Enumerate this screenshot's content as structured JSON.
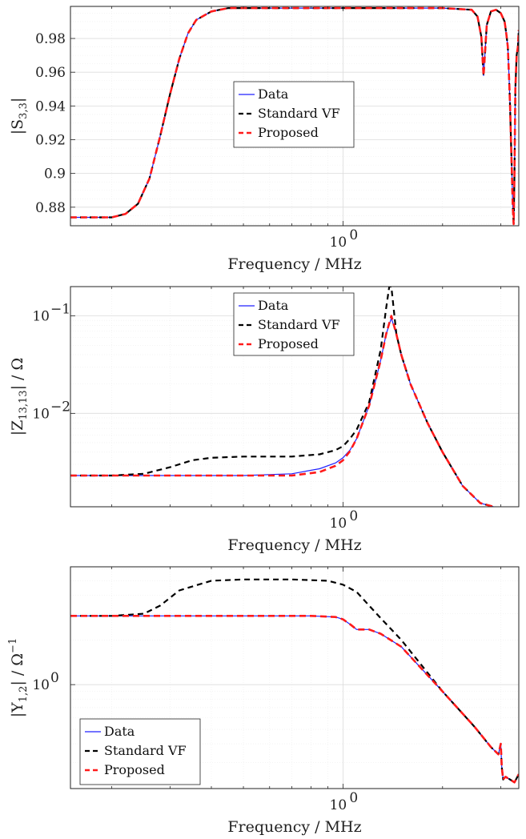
{
  "colors": {
    "data": "#2020ff",
    "standard_vf": "#000000",
    "proposed": "#ff1a1a"
  },
  "chart_data": [
    {
      "type": "line",
      "xlabel": "Frequency / MHz",
      "ylabel": "|S",
      "ylabel_sub": "3,3",
      "ylabel_tail": "|",
      "xscale": "log",
      "xlim": [
        0.15,
        3.4
      ],
      "ylim": [
        0.869,
        0.999
      ],
      "yscale": "linear",
      "yticks": [
        0.88,
        0.9,
        0.92,
        0.94,
        0.96,
        0.98
      ],
      "yticklabels": [
        "0.88",
        "0.9",
        "0.92",
        "0.94",
        "0.96",
        "0.98"
      ],
      "xticks": [
        1.0
      ],
      "xtick_base": "10",
      "xtick_exp": "0",
      "grid": true,
      "legend_position": "center",
      "legend": [
        "Data",
        "Standard VF",
        "Proposed"
      ],
      "series": [
        {
          "name": "Data",
          "x": [
            0.15,
            0.2,
            0.22,
            0.24,
            0.26,
            0.28,
            0.3,
            0.32,
            0.34,
            0.36,
            0.4,
            0.45,
            0.5,
            0.7,
            1.0,
            1.5,
            2.0,
            2.45,
            2.55,
            2.62,
            2.66,
            2.72,
            2.8,
            2.9,
            3.0,
            3.08,
            3.12,
            3.15,
            3.18,
            3.2,
            3.22,
            3.24,
            3.26,
            3.28,
            3.3,
            3.32,
            3.35,
            3.38,
            3.4
          ],
          "y": [
            0.874,
            0.874,
            0.876,
            0.882,
            0.897,
            0.922,
            0.947,
            0.968,
            0.983,
            0.991,
            0.996,
            0.998,
            0.998,
            0.998,
            0.998,
            0.998,
            0.998,
            0.997,
            0.993,
            0.981,
            0.958,
            0.988,
            0.996,
            0.997,
            0.995,
            0.99,
            0.982,
            0.975,
            0.955,
            0.94,
            0.92,
            0.9,
            0.88,
            0.87,
            0.9,
            0.95,
            0.97,
            0.975,
            0.985
          ]
        },
        {
          "name": "Standard VF",
          "x": [
            0.15,
            0.2,
            0.22,
            0.24,
            0.26,
            0.28,
            0.3,
            0.32,
            0.34,
            0.36,
            0.4,
            0.45,
            0.5,
            0.7,
            1.0,
            1.5,
            2.0,
            2.45,
            2.55,
            2.62,
            2.66,
            2.72,
            2.8,
            2.9,
            3.0,
            3.08,
            3.12,
            3.15,
            3.18,
            3.2,
            3.22,
            3.24,
            3.26,
            3.28,
            3.3,
            3.32,
            3.35,
            3.38,
            3.4
          ],
          "y": [
            0.874,
            0.874,
            0.876,
            0.882,
            0.897,
            0.922,
            0.947,
            0.968,
            0.983,
            0.991,
            0.996,
            0.998,
            0.998,
            0.998,
            0.998,
            0.998,
            0.998,
            0.997,
            0.993,
            0.981,
            0.958,
            0.988,
            0.996,
            0.997,
            0.995,
            0.99,
            0.982,
            0.975,
            0.955,
            0.94,
            0.92,
            0.9,
            0.88,
            0.87,
            0.9,
            0.95,
            0.97,
            0.975,
            0.985
          ]
        },
        {
          "name": "Proposed",
          "x": [
            0.15,
            0.2,
            0.22,
            0.24,
            0.26,
            0.28,
            0.3,
            0.32,
            0.34,
            0.36,
            0.4,
            0.45,
            0.5,
            0.7,
            1.0,
            1.5,
            2.0,
            2.45,
            2.55,
            2.62,
            2.66,
            2.72,
            2.8,
            2.9,
            3.0,
            3.08,
            3.12,
            3.15,
            3.18,
            3.2,
            3.22,
            3.24,
            3.26,
            3.28,
            3.3,
            3.32,
            3.35,
            3.38,
            3.4
          ],
          "y": [
            0.874,
            0.874,
            0.876,
            0.882,
            0.897,
            0.922,
            0.947,
            0.968,
            0.983,
            0.991,
            0.996,
            0.998,
            0.998,
            0.998,
            0.998,
            0.998,
            0.998,
            0.997,
            0.993,
            0.981,
            0.958,
            0.988,
            0.996,
            0.997,
            0.995,
            0.99,
            0.982,
            0.975,
            0.955,
            0.94,
            0.92,
            0.9,
            0.88,
            0.87,
            0.9,
            0.95,
            0.97,
            0.975,
            0.985
          ]
        }
      ]
    },
    {
      "type": "line",
      "xlabel": "Frequency / MHz",
      "ylabel": "|Z",
      "ylabel_sub": "13,13",
      "ylabel_tail": "| / Ω",
      "xscale": "log",
      "xlim": [
        0.15,
        3.4
      ],
      "yscale": "log",
      "ylim": [
        0.0011,
        0.2
      ],
      "yticks": [
        0.01,
        0.1
      ],
      "ytick_base": "10",
      "ytick_exps": [
        "−2",
        "−1"
      ],
      "xticks": [
        1.0
      ],
      "xtick_base": "10",
      "xtick_exp": "0",
      "grid": true,
      "legend_position": "top-center",
      "legend": [
        "Data",
        "Standard VF",
        "Proposed"
      ],
      "series": [
        {
          "name": "Data",
          "x": [
            0.15,
            0.2,
            0.3,
            0.5,
            0.7,
            0.85,
            0.95,
            1.0,
            1.05,
            1.1,
            1.2,
            1.3,
            1.35,
            1.4,
            1.45,
            1.5,
            1.6,
            1.8,
            2.0,
            2.3,
            2.6,
            3.0,
            3.4
          ],
          "y": [
            0.0023,
            0.0023,
            0.0023,
            0.0023,
            0.0024,
            0.0027,
            0.0031,
            0.0035,
            0.0042,
            0.0055,
            0.012,
            0.035,
            0.065,
            0.095,
            0.065,
            0.04,
            0.02,
            0.008,
            0.004,
            0.0018,
            0.0012,
            0.00105,
            0.00105
          ]
        },
        {
          "name": "Standard VF",
          "x": [
            0.15,
            0.2,
            0.25,
            0.3,
            0.35,
            0.4,
            0.5,
            0.7,
            0.85,
            0.95,
            1.0,
            1.05,
            1.1,
            1.2,
            1.3,
            1.35,
            1.38,
            1.4,
            1.45,
            1.5,
            1.6,
            1.8,
            2.0,
            2.3,
            2.6,
            3.0,
            3.4
          ],
          "y": [
            0.0023,
            0.0023,
            0.0024,
            0.0028,
            0.0033,
            0.0035,
            0.0036,
            0.0036,
            0.0038,
            0.0042,
            0.0046,
            0.0055,
            0.0068,
            0.013,
            0.045,
            0.12,
            0.2,
            0.2,
            0.065,
            0.04,
            0.02,
            0.008,
            0.004,
            0.0018,
            0.0012,
            0.00105,
            0.00105
          ]
        },
        {
          "name": "Proposed",
          "x": [
            0.15,
            0.2,
            0.3,
            0.5,
            0.7,
            0.85,
            0.95,
            1.0,
            1.05,
            1.1,
            1.2,
            1.3,
            1.35,
            1.4,
            1.45,
            1.5,
            1.6,
            1.8,
            2.0,
            2.3,
            2.6,
            3.0,
            3.4
          ],
          "y": [
            0.0023,
            0.0023,
            0.0023,
            0.0023,
            0.0023,
            0.0025,
            0.0029,
            0.0033,
            0.0041,
            0.0055,
            0.012,
            0.035,
            0.065,
            0.1,
            0.065,
            0.04,
            0.02,
            0.008,
            0.004,
            0.0018,
            0.0012,
            0.00105,
            0.00105
          ]
        }
      ]
    },
    {
      "type": "line",
      "xlabel": "Frequency / MHz",
      "ylabel": "|Y",
      "ylabel_sub": "1,2",
      "ylabel_tail": "| / Ω",
      "ylabel_sup": "−1",
      "xscale": "log",
      "xlim": [
        0.15,
        3.4
      ],
      "yscale": "log",
      "ylim": [
        0.2,
        6.2
      ],
      "yticks": [
        1.0
      ],
      "ytick_base": "10",
      "ytick_exps": [
        "0"
      ],
      "xticks": [
        1.0
      ],
      "xtick_base": "10",
      "xtick_exp": "0",
      "grid": true,
      "legend_position": "bottom-left",
      "legend": [
        "Data",
        "Standard VF",
        "Proposed"
      ],
      "series": [
        {
          "name": "Data",
          "x": [
            0.15,
            0.2,
            0.3,
            0.5,
            0.8,
            0.95,
            1.0,
            1.05,
            1.1,
            1.2,
            1.3,
            1.5,
            2.0,
            2.5,
            2.8,
            2.95,
            3.0,
            3.02,
            3.05,
            3.1,
            3.2,
            3.3,
            3.4
          ],
          "y": [
            2.9,
            2.9,
            2.9,
            2.9,
            2.9,
            2.85,
            2.75,
            2.55,
            2.35,
            2.35,
            2.2,
            1.8,
            0.9,
            0.52,
            0.38,
            0.34,
            0.4,
            0.28,
            0.23,
            0.24,
            0.23,
            0.22,
            0.25
          ]
        },
        {
          "name": "Standard VF",
          "x": [
            0.15,
            0.2,
            0.25,
            0.28,
            0.32,
            0.4,
            0.5,
            0.7,
            0.9,
            1.0,
            1.1,
            1.2,
            1.3,
            1.5,
            2.0,
            2.5,
            2.8,
            2.95,
            3.0,
            3.02,
            3.05,
            3.1,
            3.2,
            3.3,
            3.4
          ],
          "y": [
            2.9,
            2.9,
            3.0,
            3.4,
            4.3,
            5.0,
            5.1,
            5.1,
            5.0,
            4.7,
            4.2,
            3.4,
            2.8,
            2.0,
            0.9,
            0.52,
            0.38,
            0.34,
            0.4,
            0.28,
            0.23,
            0.24,
            0.23,
            0.22,
            0.25
          ]
        },
        {
          "name": "Proposed",
          "x": [
            0.15,
            0.2,
            0.3,
            0.5,
            0.8,
            0.95,
            1.0,
            1.05,
            1.1,
            1.2,
            1.3,
            1.5,
            2.0,
            2.5,
            2.8,
            2.95,
            3.0,
            3.02,
            3.05,
            3.1,
            3.2,
            3.3,
            3.4
          ],
          "y": [
            2.9,
            2.9,
            2.9,
            2.9,
            2.9,
            2.85,
            2.75,
            2.55,
            2.35,
            2.35,
            2.2,
            1.8,
            0.9,
            0.52,
            0.38,
            0.34,
            0.4,
            0.28,
            0.23,
            0.24,
            0.23,
            0.22,
            0.25
          ]
        }
      ]
    }
  ]
}
